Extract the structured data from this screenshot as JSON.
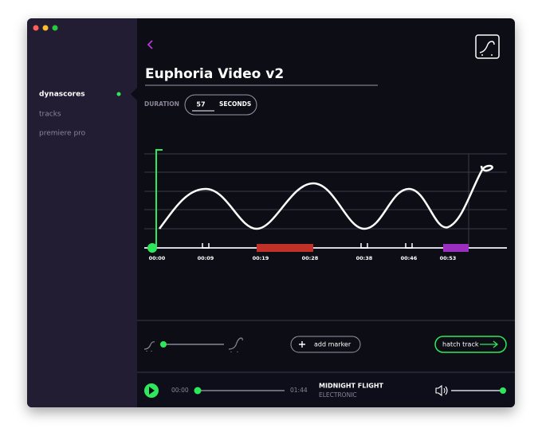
{
  "sidebar": {
    "items": [
      "dynascores",
      "tracks",
      "premiere pro"
    ]
  },
  "header": {
    "title": "Euphoria Video v2",
    "duration_label": "DURATION",
    "duration_value": "57",
    "duration_unit": "SECONDS"
  },
  "timeline": {
    "labels": [
      "00:00",
      "00:09",
      "00:19",
      "00:28",
      "00:38",
      "00:46",
      "00:53"
    ]
  },
  "controls": {
    "add_marker": "add marker",
    "hatch_track": "hatch track"
  },
  "player": {
    "current_time": "00:00",
    "total_time": "01:44",
    "track_title": "MIDNIGHT FLIGHT",
    "track_genre": "ELECTRONIC"
  }
}
